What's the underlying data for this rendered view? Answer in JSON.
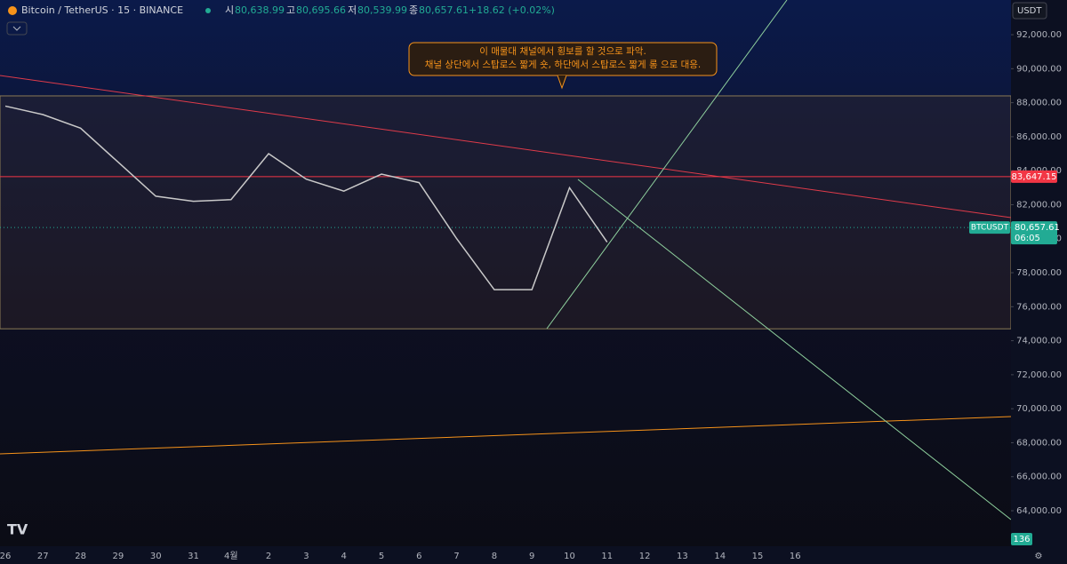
{
  "chart_data": {
    "type": "line",
    "title": "Bitcoin / TetherUS · 15 · BINANCE",
    "ohlc": [
      {
        "label": "시",
        "value": "80,638.99"
      },
      {
        "label": "고",
        "value": "80,695.66"
      },
      {
        "label": "저",
        "value": "80,539.99"
      },
      {
        "label": "종",
        "value": "80,657.61"
      }
    ],
    "change": "+18.62 (+0.02%)",
    "currency": "USDT",
    "annotation": [
      "이 매물대 채널에서 횡보를 할 것으로 파악.",
      "채널 상단에서 스탑로스 짧게 숏, 하단에서 스탑로스 짧게 롱 으로 대응."
    ],
    "categories": [
      "26",
      "27",
      "28",
      "29",
      "30",
      "31",
      "4월",
      "2",
      "3",
      "4",
      "5",
      "6",
      "7",
      "8",
      "9",
      "10",
      "11",
      "12",
      "13",
      "14",
      "15",
      "16"
    ],
    "series": [
      {
        "name": "BTCUSDT",
        "color": "#c9c9c9",
        "values": [
          87800,
          87300,
          86500,
          84500,
          82500,
          82200,
          82300,
          85000,
          83500,
          82800,
          83800,
          83300,
          80000,
          77000,
          77000,
          83000,
          79800,
          null,
          null,
          null,
          null,
          null
        ]
      }
    ],
    "ylim": [
      61650,
      94040
    ],
    "yticks": [
      {
        "value": 64000,
        "label": "64,000.00"
      },
      {
        "value": 66000,
        "label": "66,000.00"
      },
      {
        "value": 68000,
        "label": "68,000.00"
      },
      {
        "value": 70000,
        "label": "70,000.00"
      },
      {
        "value": 72000,
        "label": "72,000.00"
      },
      {
        "value": 74000,
        "label": "74,000.00"
      },
      {
        "value": 76000,
        "label": "76,000.00"
      },
      {
        "value": 78000,
        "label": "78,000.00"
      },
      {
        "value": 80000,
        "label": "80,000.00"
      },
      {
        "value": 82000,
        "label": "82,000.00"
      },
      {
        "value": 84000,
        "label": "84,000.00"
      },
      {
        "value": 86000,
        "label": "86,000.00"
      },
      {
        "value": 88000,
        "label": "88,000.00"
      },
      {
        "value": 90000,
        "label": "90,000.00"
      },
      {
        "value": 92000,
        "label": "92,000.00"
      }
    ],
    "channel": [
      74700,
      88400
    ],
    "hlines": [
      {
        "value": 83647.15,
        "label": "83,647.15",
        "color": "#f23645"
      }
    ],
    "last_price": {
      "value": 80657.61,
      "label": "80,657.61",
      "symbol": "BTCUSDT",
      "countdown": "06:05",
      "color": "#22ab94"
    },
    "volume_label": "136"
  }
}
